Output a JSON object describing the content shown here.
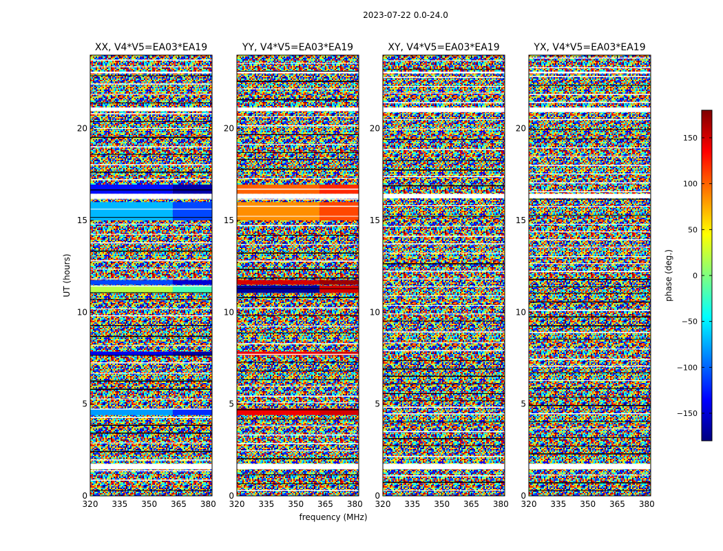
{
  "chart_data": {
    "type": "heatmap",
    "suptitle": "2023-07-22 0.0-24.0",
    "xlabel": "frequency (MHz)",
    "ylabel": "UT (hours)",
    "xlim": [
      320,
      382
    ],
    "ylim": [
      0,
      24
    ],
    "xticks": [
      320,
      335,
      350,
      365,
      380
    ],
    "yticks": [
      0,
      5,
      10,
      15,
      20
    ],
    "colorbar": {
      "label": "phase (deg.)",
      "range": [
        -180,
        180
      ],
      "ticks": [
        -150,
        -100,
        -50,
        0,
        50,
        100,
        150
      ],
      "tick_labels": [
        "−150",
        "−100",
        "−50",
        "0",
        "50",
        "100",
        "150"
      ],
      "colormap": "jet",
      "colors": [
        "#00007f",
        "#0000ff",
        "#007fff",
        "#00ffff",
        "#7fff7f",
        "#ffff00",
        "#ff7f00",
        "#ff0000",
        "#7f0000"
      ]
    },
    "flagged_ut_bands": [
      [
        1.45,
        1.75
      ],
      [
        16.2,
        16.45
      ],
      [
        20.95,
        21.15
      ],
      [
        23.0,
        23.1
      ]
    ],
    "coherent_ut_bands": [
      {
        "ut": [
          16.45,
          16.95
        ],
        "freq_split": 362,
        "phase": {
          "XX": [
            -130,
            -165
          ],
          "YY": [
            100,
            120
          ],
          "XY": null,
          "YX": null
        }
      },
      {
        "ut": [
          15.0,
          16.0
        ],
        "freq_split": 362,
        "phase": {
          "XX": [
            -70,
            -110
          ],
          "YY": [
            85,
            110
          ],
          "XY": null,
          "YX": null
        }
      },
      {
        "ut": [
          11.05,
          11.45
        ],
        "freq_split": 362,
        "phase": {
          "XX": [
            20,
            -20
          ],
          "YY": [
            -170,
            150
          ],
          "XY": null,
          "YX": null
        }
      },
      {
        "ut": [
          11.5,
          11.75
        ],
        "freq_split": 362,
        "phase": {
          "XX": [
            -110,
            -150
          ],
          "YY": [
            150,
            170
          ],
          "XY": null,
          "YX": null
        }
      },
      {
        "ut": [
          7.65,
          7.85
        ],
        "freq_split": 362,
        "phase": {
          "XX": [
            -140,
            -165
          ],
          "YY": [
            140,
            150
          ],
          "XY": null,
          "YX": null
        }
      },
      {
        "ut": [
          4.4,
          4.75
        ],
        "freq_split": 362,
        "phase": {
          "XX": [
            -80,
            -120
          ],
          "YY": [
            140,
            150
          ],
          "XY": null,
          "YX": null
        }
      }
    ],
    "panels": [
      {
        "title": "XX, V4*V5=EA03*EA19",
        "pol": "XX"
      },
      {
        "title": "YY, V4*V5=EA03*EA19",
        "pol": "YY"
      },
      {
        "title": "XY, V4*V5=EA03*EA19",
        "pol": "XY"
      },
      {
        "title": "YX, V4*V5=EA03*EA19",
        "pol": "YX"
      }
    ]
  }
}
